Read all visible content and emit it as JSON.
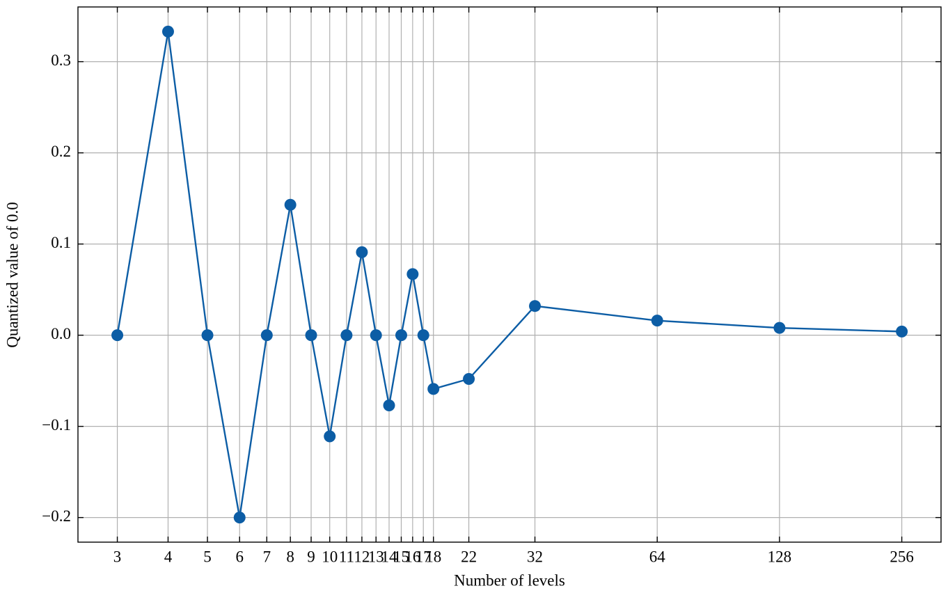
{
  "chart_data": {
    "type": "line",
    "x_label": "Number of levels",
    "y_label": "Quantized value of 0.0",
    "x_scale": "log",
    "x": [
      3,
      4,
      5,
      6,
      7,
      8,
      9,
      10,
      11,
      12,
      13,
      14,
      15,
      16,
      17,
      18,
      22,
      32,
      64,
      128,
      256
    ],
    "series": [
      {
        "color": "#0C5DA5",
        "values": [
          0,
          0.333,
          0,
          -0.2,
          0,
          0.143,
          0,
          -0.111,
          0,
          0.091,
          0,
          -0.077,
          0,
          0.067,
          0,
          -0.059,
          -0.048,
          0.032,
          0.016,
          0.008,
          0.004
        ]
      }
    ],
    "xlim": [
      2.4,
      319.8
    ],
    "ylim": [
      -0.227,
      0.36
    ],
    "xticks": [
      3,
      4,
      5,
      6,
      7,
      8,
      9,
      10,
      11,
      12,
      13,
      14,
      15,
      16,
      17,
      18,
      22,
      32,
      64,
      128,
      256
    ],
    "yticks": [
      {
        "value": -0.2,
        "label": "−0.2"
      },
      {
        "value": -0.1,
        "label": "−0.1"
      },
      {
        "value": 0,
        "label": "0.0"
      },
      0.1,
      0.2,
      0.3
    ],
    "grid": true
  }
}
